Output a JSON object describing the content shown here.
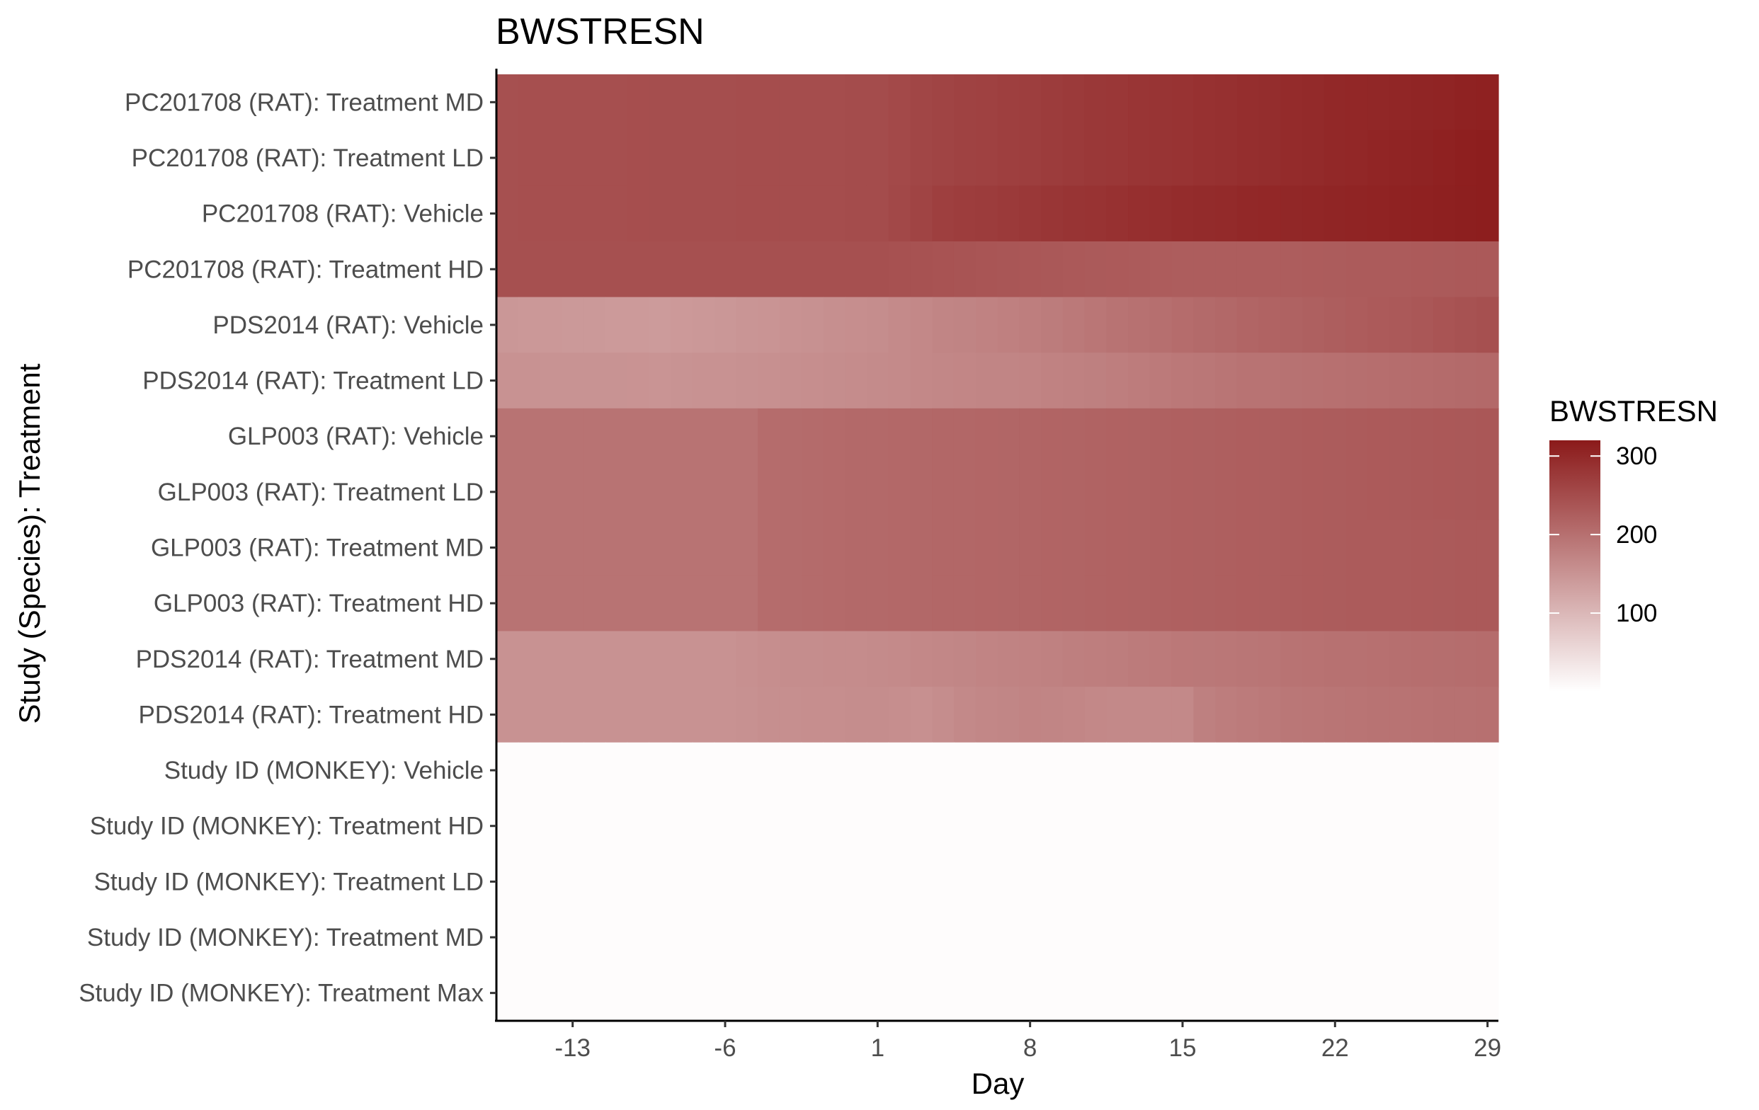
{
  "chart_data": {
    "type": "heatmap",
    "title": "BWSTRESN",
    "xlabel": "Day",
    "ylabel": "Study (Species): Treatment",
    "x_ticks": [
      -13,
      -6,
      1,
      8,
      15,
      22,
      29
    ],
    "x_range": [
      -16.5,
      29.5
    ],
    "rows": [
      "PC201708 (RAT): Treatment MD",
      "PC201708 (RAT): Treatment LD",
      "PC201708 (RAT): Vehicle",
      "PC201708 (RAT): Treatment HD",
      "PDS2014 (RAT): Vehicle",
      "PDS2014 (RAT): Treatment LD",
      "GLP003 (RAT): Vehicle",
      "GLP003 (RAT): Treatment LD",
      "GLP003 (RAT): Treatment MD",
      "GLP003 (RAT): Treatment HD",
      "PDS2014 (RAT): Treatment MD",
      "PDS2014 (RAT): Treatment HD",
      "Study ID (MONKEY): Vehicle",
      "Study ID (MONKEY): Treatment HD",
      "Study ID (MONKEY): Treatment LD",
      "Study ID (MONKEY): Treatment MD",
      "Study ID (MONKEY): Treatment Max"
    ],
    "series": [
      {
        "row": "PC201708 (RAT): Treatment MD",
        "points": [
          [
            -16,
            245
          ],
          [
            1,
            250
          ],
          [
            4,
            262
          ],
          [
            8,
            270
          ],
          [
            12,
            280
          ],
          [
            15,
            285
          ],
          [
            18,
            292
          ],
          [
            22,
            300
          ],
          [
            26,
            305
          ],
          [
            29,
            310
          ]
        ]
      },
      {
        "row": "PC201708 (RAT): Treatment LD",
        "points": [
          [
            -16,
            245
          ],
          [
            1,
            250
          ],
          [
            4,
            262
          ],
          [
            8,
            270
          ],
          [
            12,
            280
          ],
          [
            15,
            285
          ],
          [
            18,
            292
          ],
          [
            22,
            300
          ],
          [
            26,
            308
          ],
          [
            29,
            315
          ]
        ]
      },
      {
        "row": "PC201708 (RAT): Vehicle",
        "points": [
          [
            -16,
            245
          ],
          [
            1,
            250
          ],
          [
            4,
            268
          ],
          [
            8,
            278
          ],
          [
            12,
            288
          ],
          [
            15,
            295
          ],
          [
            18,
            300
          ],
          [
            22,
            305
          ],
          [
            26,
            310
          ],
          [
            29,
            315
          ]
        ]
      },
      {
        "row": "PC201708 (RAT): Treatment HD",
        "points": [
          [
            -16,
            245
          ],
          [
            1,
            245
          ],
          [
            4,
            240
          ],
          [
            8,
            235
          ],
          [
            12,
            230
          ],
          [
            15,
            226
          ],
          [
            18,
            226
          ],
          [
            22,
            228
          ],
          [
            26,
            230
          ],
          [
            29,
            232
          ]
        ]
      },
      {
        "row": "PDS2014 (RAT): Vehicle",
        "points": [
          [
            -16,
            145
          ],
          [
            -9,
            140
          ],
          [
            -4,
            150
          ],
          [
            1,
            160
          ],
          [
            4,
            170
          ],
          [
            8,
            180
          ],
          [
            12,
            195
          ],
          [
            15,
            205
          ],
          [
            18,
            215
          ],
          [
            22,
            225
          ],
          [
            26,
            235
          ],
          [
            29,
            245
          ]
        ]
      },
      {
        "row": "PDS2014 (RAT): Treatment LD",
        "points": [
          [
            -16,
            152
          ],
          [
            -9,
            150
          ],
          [
            -4,
            155
          ],
          [
            1,
            162
          ],
          [
            4,
            168
          ],
          [
            8,
            172
          ],
          [
            12,
            180
          ],
          [
            15,
            188
          ],
          [
            18,
            195
          ],
          [
            22,
            200
          ],
          [
            26,
            205
          ],
          [
            29,
            210
          ]
        ]
      },
      {
        "row": "GLP003 (RAT): Vehicle",
        "points": [
          [
            -16,
            195
          ],
          [
            -5,
            195
          ],
          [
            -4,
            205
          ],
          [
            1,
            210
          ],
          [
            8,
            215
          ],
          [
            15,
            222
          ],
          [
            22,
            228
          ],
          [
            29,
            235
          ]
        ]
      },
      {
        "row": "GLP003 (RAT): Treatment LD",
        "points": [
          [
            -16,
            195
          ],
          [
            -5,
            195
          ],
          [
            -4,
            205
          ],
          [
            1,
            210
          ],
          [
            8,
            215
          ],
          [
            15,
            222
          ],
          [
            22,
            228
          ],
          [
            29,
            235
          ]
        ]
      },
      {
        "row": "GLP003 (RAT): Treatment MD",
        "points": [
          [
            -16,
            195
          ],
          [
            -5,
            195
          ],
          [
            -4,
            205
          ],
          [
            1,
            210
          ],
          [
            8,
            215
          ],
          [
            15,
            222
          ],
          [
            22,
            228
          ],
          [
            29,
            232
          ]
        ]
      },
      {
        "row": "GLP003 (RAT): Treatment HD",
        "points": [
          [
            -16,
            195
          ],
          [
            -5,
            195
          ],
          [
            -4,
            205
          ],
          [
            1,
            210
          ],
          [
            8,
            215
          ],
          [
            15,
            222
          ],
          [
            22,
            228
          ],
          [
            29,
            232
          ]
        ]
      },
      {
        "row": "PDS2014 (RAT): Treatment MD",
        "points": [
          [
            -16,
            152
          ],
          [
            -6,
            152
          ],
          [
            -4,
            158
          ],
          [
            1,
            162
          ],
          [
            4,
            168
          ],
          [
            8,
            175
          ],
          [
            12,
            182
          ],
          [
            15,
            188
          ],
          [
            18,
            192
          ],
          [
            22,
            198
          ],
          [
            26,
            202
          ],
          [
            29,
            205
          ]
        ]
      },
      {
        "row": "PDS2014 (RAT): Treatment HD",
        "points": [
          [
            -16,
            152
          ],
          [
            -6,
            152
          ],
          [
            -4,
            156
          ],
          [
            1,
            160
          ],
          [
            3,
            155
          ],
          [
            5,
            165
          ],
          [
            8,
            172
          ],
          [
            12,
            165
          ],
          [
            15,
            165
          ],
          [
            16,
            178
          ],
          [
            20,
            190
          ],
          [
            24,
            195
          ],
          [
            29,
            200
          ]
        ]
      },
      {
        "row": "Study ID (MONKEY): Vehicle",
        "points": [
          [
            -16,
            4
          ],
          [
            29,
            4
          ]
        ]
      },
      {
        "row": "Study ID (MONKEY): Treatment HD",
        "points": [
          [
            -16,
            4
          ],
          [
            29,
            4
          ]
        ]
      },
      {
        "row": "Study ID (MONKEY): Treatment LD",
        "points": [
          [
            -16,
            4
          ],
          [
            29,
            4
          ]
        ]
      },
      {
        "row": "Study ID (MONKEY): Treatment MD",
        "points": [
          [
            -16,
            4
          ],
          [
            29,
            4
          ]
        ]
      },
      {
        "row": "Study ID (MONKEY): Treatment Max",
        "points": [
          [
            -16,
            4
          ],
          [
            29,
            4
          ]
        ]
      }
    ],
    "legend": {
      "title": "BWSTRESN",
      "ticks": [
        100,
        200,
        300
      ],
      "range": [
        0,
        320
      ],
      "low_color": "#ffffff",
      "high_color": "#8b1a1a",
      "placement": "right"
    },
    "grid": false
  }
}
